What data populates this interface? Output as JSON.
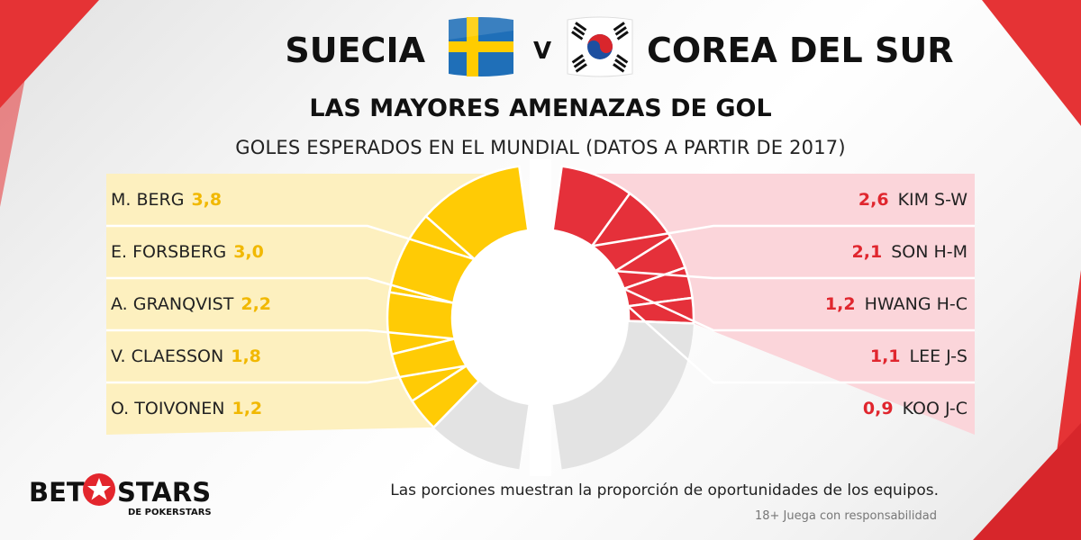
{
  "header": {
    "home_team": "SUECIA",
    "vs": "V",
    "away_team": "COREA DEL SUR",
    "home_flag": "sweden-flag-icon",
    "away_flag": "south-korea-flag-icon"
  },
  "subtitle": "LAS MAYORES AMENAZAS DE GOL",
  "caption": "GOLES ESPERADOS EN EL MUNDIAL (DATOS A PARTIR DE 2017)",
  "chart_data": [
    {
      "type": "pie",
      "name": "SUECIA",
      "color": "#ffcb05",
      "panel_color": "#fdf0bf",
      "remainder_color": "#e3e3e3",
      "categories": [
        "M. BERG",
        "E. FORSBERG",
        "A. GRANQVIST",
        "V. CLAESSON",
        "O. TOIVONEN"
      ],
      "values": [
        3.8,
        3.0,
        2.2,
        1.8,
        1.2
      ],
      "value_labels": [
        "3,8",
        "3,0",
        "2,2",
        "1,8",
        "1,2"
      ],
      "share_total": 15.4
    },
    {
      "type": "pie",
      "name": "COREA DEL SUR",
      "color": "#e5303a",
      "panel_color": "#fbd5da",
      "remainder_color": "#e3e3e3",
      "categories": [
        "KIM S-W",
        "SON H-M",
        "HWANG H-C",
        "LEE J-S",
        "KOO J-C"
      ],
      "values": [
        2.6,
        2.1,
        1.2,
        1.1,
        0.9
      ],
      "value_labels": [
        "2,6",
        "2,1",
        "1,2",
        "1,1",
        "0,9"
      ],
      "share_total": 15.4
    }
  ],
  "footer": {
    "logo_bet": "BET",
    "logo_stars": "STARS",
    "logo_sub": "DE POKERSTARS",
    "logo_icon": "star-icon",
    "note": "Las porciones muestran la proporción de oportunidades de los equipos.",
    "responsibility": "18+ Juega con responsabilidad"
  }
}
